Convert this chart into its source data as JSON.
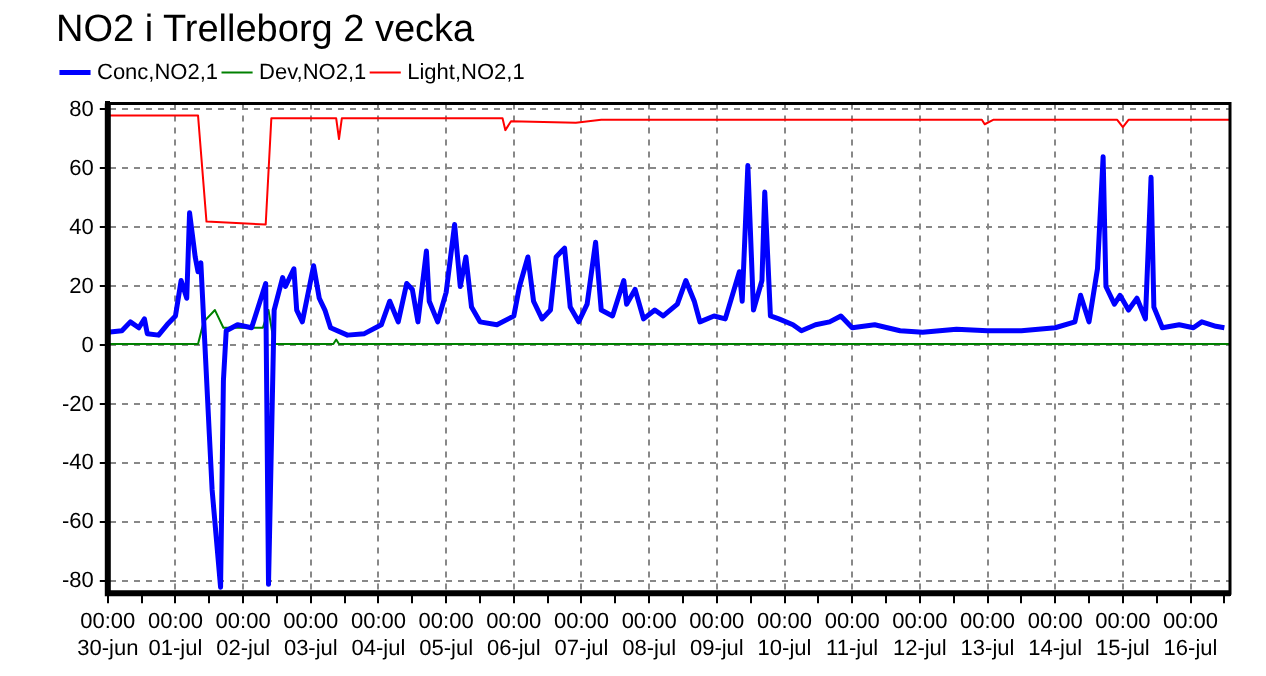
{
  "chart_data": {
    "type": "line",
    "title": "NO2 i Trelleborg 2 vecka",
    "legend": "top left",
    "grid": true,
    "marker": "none",
    "line_style": "solid",
    "xlim": [
      "--06-30T00:00",
      "--07-16T14:00"
    ],
    "xticks": [
      {
        "value": "--06-30T00:00",
        "label": "00:00\n30-jun"
      },
      {
        "value": "--06-30T12:00",
        "label": null
      },
      {
        "value": "--07-01T00:00",
        "label": "00:00\n01-jul"
      },
      {
        "value": "--07-01T12:00",
        "label": null
      },
      {
        "value": "--07-02T00:00",
        "label": "00:00\n02-jul"
      },
      {
        "value": "--07-02T12:00",
        "label": null
      },
      {
        "value": "--07-03T00:00",
        "label": "00:00\n03-jul"
      },
      {
        "value": "--07-03T12:00",
        "label": null
      },
      {
        "value": "--07-04T00:00",
        "label": "00:00\n04-jul"
      },
      {
        "value": "--07-04T12:00",
        "label": null
      },
      {
        "value": "--07-05T00:00",
        "label": "00:00\n05-jul"
      },
      {
        "value": "--07-05T12:00",
        "label": null
      },
      {
        "value": "--07-06T00:00",
        "label": "00:00\n06-jul"
      },
      {
        "value": "--07-06T12:00",
        "label": null
      },
      {
        "value": "--07-07T00:00",
        "label": "00:00\n07-jul"
      },
      {
        "value": "--07-07T12:00",
        "label": null
      },
      {
        "value": "--07-08T00:00",
        "label": "00:00\n08-jul"
      },
      {
        "value": "--07-08T12:00",
        "label": null
      },
      {
        "value": "--07-09T00:00",
        "label": "00:00\n09-jul"
      },
      {
        "value": "--07-09T12:00",
        "label": null
      },
      {
        "value": "--07-10T00:00",
        "label": "00:00\n10-jul"
      },
      {
        "value": "--07-10T12:00",
        "label": null
      },
      {
        "value": "--07-11T00:00",
        "label": "00:00\n11-jul"
      },
      {
        "value": "--07-11T12:00",
        "label": null
      },
      {
        "value": "--07-12T00:00",
        "label": "00:00\n12-jul"
      },
      {
        "value": "--07-12T12:00",
        "label": null
      },
      {
        "value": "--07-13T00:00",
        "label": "00:00\n13-jul"
      },
      {
        "value": "--07-13T12:00",
        "label": null
      },
      {
        "value": "--07-14T00:00",
        "label": "00:00\n14-jul"
      },
      {
        "value": "--07-14T12:00",
        "label": null
      },
      {
        "value": "--07-15T00:00",
        "label": "00:00\n15-jul"
      },
      {
        "value": "--07-15T12:00",
        "label": null
      },
      {
        "value": "--07-16T00:00",
        "label": "00:00\n16-jul"
      },
      {
        "value": "--07-16T12:00",
        "label": null
      }
    ],
    "ylim": [
      -84,
      82
    ],
    "yticks": [
      -80,
      -60,
      -40,
      -20,
      0,
      20,
      40,
      60,
      80
    ],
    "series": [
      {
        "name": "Conc,NO2,1",
        "color": "#0000ff",
        "x": [
          "--06-30T00:00",
          "--06-30T05:00",
          "--06-30T08:00",
          "--06-30T11:00",
          "--06-30T13:00",
          "--06-30T14:00",
          "--06-30T18:00",
          "--06-30T21:00",
          "--07-01T00:00",
          "--07-01T02:00",
          "--07-01T04:00",
          "--07-01T05:00",
          "--07-01T07:00",
          "--07-01T08:00",
          "--07-01T09:00",
          "--07-01T12:00",
          "--07-01T13:00",
          "--07-01T16:00",
          "--07-01T17:00",
          "--07-01T18:00",
          "--07-01T22:00",
          "--07-02T03:00",
          "--07-02T08:00",
          "--07-02T09:00",
          "--07-02T11:00",
          "--07-02T14:00",
          "--07-02T15:00",
          "--07-02T18:00",
          "--07-02T19:00",
          "--07-02T21:00",
          "--07-03T01:00",
          "--07-03T03:00",
          "--07-03T05:00",
          "--07-03T07:00",
          "--07-03T13:00",
          "--07-03T19:00",
          "--07-04T01:00",
          "--07-04T04:00",
          "--07-04T07:00",
          "--07-04T10:00",
          "--07-04T12:00",
          "--07-04T14:00",
          "--07-04T17:00",
          "--07-04T18:00",
          "--07-04T21:00",
          "--07-05T00:00",
          "--07-05T03:00",
          "--07-05T05:00",
          "--07-05T07:00",
          "--07-05T09:00",
          "--07-05T12:00",
          "--07-05T18:00",
          "--07-06T00:00",
          "--07-06T02:00",
          "--07-06T05:00",
          "--07-06T07:00",
          "--07-06T10:00",
          "--07-06T13:00",
          "--07-06T15:00",
          "--07-06T17:00",
          "--07-06T18:00",
          "--07-06T20:00",
          "--07-06T23:00",
          "--07-07T02:00",
          "--07-07T05:00",
          "--07-07T07:00",
          "--07-07T11:00",
          "--07-07T15:00",
          "--07-07T16:00",
          "--07-07T19:00",
          "--07-07T22:00",
          "--07-08T02:00",
          "--07-08T05:00",
          "--07-08T10:00",
          "--07-08T13:00",
          "--07-08T16:00",
          "--07-08T18:00",
          "--07-08T23:00",
          "--07-09T03:00",
          "--07-09T08:00",
          "--07-09T09:00",
          "--07-09T11:00",
          "--07-09T13:00",
          "--07-09T16:00",
          "--07-09T17:00",
          "--07-09T19:00",
          "--07-09T22:00",
          "--07-10T03:00",
          "--07-10T06:00",
          "--07-10T11:00",
          "--07-10T16:00",
          "--07-10T20:00",
          "--07-11T00:00",
          "--07-11T08:00",
          "--07-11T17:00",
          "--07-12T01:00",
          "--07-12T13:00",
          "--07-13T00:00",
          "--07-13T12:00",
          "--07-14T00:00",
          "--07-14T07:00",
          "--07-14T09:00",
          "--07-14T12:00",
          "--07-14T15:00",
          "--07-14T17:00",
          "--07-14T18:00",
          "--07-14T21:00",
          "--07-14T23:00",
          "--07-15T02:00",
          "--07-15T05:00",
          "--07-15T08:00",
          "--07-15T10:00",
          "--07-15T11:00",
          "--07-15T14:00",
          "--07-15T20:00",
          "--07-16T01:00",
          "--07-16T04:00",
          "--07-16T09:00",
          "--07-16T12:00"
        ],
        "values": [
          4.5,
          5,
          8,
          6,
          9,
          4,
          3.5,
          7,
          10,
          22,
          16,
          45,
          30,
          25,
          28,
          -30,
          -49,
          -82,
          -12,
          5,
          7,
          6,
          21,
          -81,
          12,
          23,
          20,
          26,
          12,
          8,
          27,
          16,
          12,
          6,
          3.5,
          4,
          7,
          15,
          8,
          21,
          19,
          8,
          32,
          15,
          8,
          18,
          41,
          20,
          30,
          13,
          8,
          7,
          10,
          20,
          30,
          15,
          9,
          12,
          30,
          32,
          33,
          13,
          8,
          14,
          35,
          12,
          10,
          22,
          14,
          19,
          9,
          12,
          10,
          14,
          22,
          15,
          8,
          10,
          9,
          25,
          15,
          61,
          12,
          22,
          52,
          10,
          9,
          7,
          5,
          7,
          8,
          10,
          6,
          7,
          5,
          4.5,
          5.5,
          5,
          5,
          6,
          8,
          17,
          8,
          26,
          64,
          20,
          14,
          17,
          12,
          16,
          9,
          57,
          13,
          6,
          7,
          6,
          8,
          6.5,
          6
        ]
      },
      {
        "name": "Dev,NO2,1",
        "color": "#008000",
        "x": [
          "--06-30T00:00",
          "--07-01T08:00",
          "--07-01T10:00",
          "--07-01T14:00",
          "--07-01T17:00",
          "--07-02T07:00",
          "--07-02T09:00",
          "--07-02T11:00",
          "--07-03T08:00",
          "--07-03T09:00",
          "--07-03T10:00",
          "--07-16T14:00"
        ],
        "values": [
          0.5,
          0.5,
          8,
          12,
          6,
          6,
          12,
          0.5,
          0.5,
          2,
          0.5,
          0.5
        ]
      },
      {
        "name": "Light,NO2,1",
        "color": "#ff0000",
        "x": [
          "--06-30T00:00",
          "--07-01T08:00",
          "--07-01T11:00",
          "--07-02T08:00",
          "--07-02T10:00",
          "--07-03T09:00",
          "--07-03T10:00",
          "--07-03T11:00",
          "--07-05T20:00",
          "--07-05T21:00",
          "--07-05T23:00",
          "--07-06T22:00",
          "--07-07T07:00",
          "--07-12T22:00",
          "--07-12T23:00",
          "--07-13T02:00",
          "--07-14T22:00",
          "--07-15T00:00",
          "--07-15T02:00",
          "--07-16T14:00"
        ],
        "values": [
          78,
          78,
          42,
          41,
          77,
          77,
          70,
          77,
          77,
          73,
          76,
          75.5,
          76.5,
          76.5,
          75,
          76.5,
          76.5,
          74,
          76.5,
          76.5
        ]
      }
    ]
  }
}
